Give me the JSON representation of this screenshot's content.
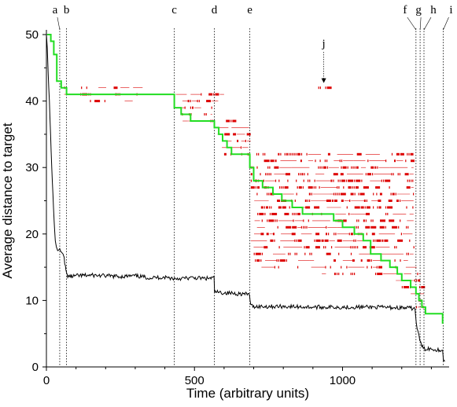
{
  "chart_data": {
    "type": "line",
    "xlabel": "Time (arbitrary units)",
    "ylabel": "Average distance to target",
    "xlim": [
      0,
      1360
    ],
    "ylim": [
      0,
      50
    ],
    "x_ticks": [
      0,
      500,
      1000
    ],
    "y_ticks": [
      0,
      10,
      20,
      30,
      40,
      50
    ],
    "grid": false,
    "colors": {
      "black_series": "#000000",
      "green_series": "#22dd22",
      "red_marks": "#dd0000",
      "markers": "#000000"
    },
    "markers": [
      {
        "label": "a",
        "x": 45
      },
      {
        "label": "b",
        "x": 68
      },
      {
        "label": "c",
        "x": 432
      },
      {
        "label": "d",
        "x": 567
      },
      {
        "label": "e",
        "x": 687
      },
      {
        "label": "f",
        "x": 1248
      },
      {
        "label": "g",
        "x": 1262
      },
      {
        "label": "h",
        "x": 1275
      },
      {
        "label": "i",
        "x": 1340
      }
    ],
    "annotations": [
      {
        "label": "j",
        "x": 942,
        "y": 42
      }
    ],
    "series": [
      {
        "style": "solid-black",
        "x": [
          0,
          3,
          6,
          10,
          14,
          18,
          22,
          26,
          30,
          34,
          38,
          42,
          45,
          48,
          52,
          56,
          60,
          64,
          68,
          72,
          80,
          100,
          150,
          200,
          250,
          300,
          350,
          400,
          432,
          450,
          500,
          540,
          566,
          568,
          580,
          620,
          660,
          686,
          690,
          700,
          800,
          900,
          1000,
          1100,
          1200,
          1245,
          1249,
          1255,
          1261,
          1265,
          1270,
          1276,
          1290,
          1300,
          1320,
          1338,
          1341,
          1345
        ],
        "y": [
          50,
          48,
          44,
          40,
          35,
          30,
          26,
          22,
          19,
          18,
          17.5,
          17.6,
          17.8,
          17.4,
          17.2,
          17.0,
          16.5,
          15.0,
          14.0,
          13.7,
          13.6,
          13.7,
          13.8,
          13.7,
          13.6,
          13.7,
          13.4,
          13.5,
          13.3,
          13.3,
          13.4,
          13.3,
          13.4,
          11.3,
          11.2,
          11.1,
          11.0,
          10.9,
          9.2,
          9.1,
          9.1,
          9.0,
          9.0,
          9.0,
          8.9,
          8.8,
          6.5,
          5.2,
          4.0,
          3.5,
          3.0,
          2.7,
          2.8,
          2.7,
          2.6,
          2.5,
          0.9,
          0.8
        ]
      },
      {
        "style": "solid-green",
        "x": [
          2,
          15,
          25,
          35,
          50,
          68,
          432,
          455,
          487,
          567,
          582,
          595,
          610,
          625,
          687,
          700,
          730,
          765,
          795,
          830,
          865,
          900,
          930,
          970,
          1000,
          1040,
          1070,
          1095,
          1130,
          1160,
          1185,
          1200,
          1230,
          1248,
          1258,
          1268,
          1280,
          1338
        ],
        "y": [
          50,
          49,
          47,
          43,
          42,
          41,
          39,
          38,
          37,
          36,
          35,
          34,
          33,
          32,
          30,
          28,
          27,
          26,
          25,
          24,
          23,
          23,
          23,
          22,
          21,
          20,
          19,
          17,
          16,
          15,
          14,
          13,
          12,
          11,
          10,
          9,
          8,
          6.5
        ]
      }
    ],
    "red_bands": [
      {
        "y": 42,
        "x0": 60,
        "x1": 400,
        "density": 0.2
      },
      {
        "y": 41,
        "x0": 60,
        "x1": 340,
        "density": 0.45
      },
      {
        "y": 40,
        "x0": 130,
        "x1": 300,
        "density": 0.12
      },
      {
        "y": 41,
        "x0": 430,
        "x1": 600,
        "density": 0.4
      },
      {
        "y": 40,
        "x0": 430,
        "x1": 580,
        "density": 0.4
      },
      {
        "y": 39,
        "x0": 430,
        "x1": 590,
        "density": 0.4
      },
      {
        "y": 38,
        "x0": 440,
        "x1": 560,
        "density": 0.35
      },
      {
        "y": 37,
        "x0": 460,
        "x1": 640,
        "density": 0.3
      },
      {
        "y": 36,
        "x0": 560,
        "x1": 690,
        "density": 0.3
      },
      {
        "y": 35,
        "x0": 560,
        "x1": 690,
        "density": 0.3
      },
      {
        "y": 34,
        "x0": 570,
        "x1": 690,
        "density": 0.3
      },
      {
        "y": 33,
        "x0": 580,
        "x1": 690,
        "density": 0.3
      },
      {
        "y": 32,
        "x0": 600,
        "x1": 1230,
        "density": 0.5
      },
      {
        "y": 31,
        "x0": 690,
        "x1": 1240,
        "density": 0.35
      },
      {
        "y": 30,
        "x0": 690,
        "x1": 1240,
        "density": 0.5
      },
      {
        "y": 29,
        "x0": 690,
        "x1": 1240,
        "density": 0.45
      },
      {
        "y": 28,
        "x0": 690,
        "x1": 1240,
        "density": 0.5
      },
      {
        "y": 27,
        "x0": 690,
        "x1": 1240,
        "density": 0.5
      },
      {
        "y": 26,
        "x0": 690,
        "x1": 1240,
        "density": 0.45
      },
      {
        "y": 25,
        "x0": 690,
        "x1": 1240,
        "density": 0.5
      },
      {
        "y": 24,
        "x0": 690,
        "x1": 1240,
        "density": 0.45
      },
      {
        "y": 23,
        "x0": 690,
        "x1": 1240,
        "density": 0.5
      },
      {
        "y": 22,
        "x0": 690,
        "x1": 1240,
        "density": 0.45
      },
      {
        "y": 21,
        "x0": 690,
        "x1": 1240,
        "density": 0.5
      },
      {
        "y": 20,
        "x0": 690,
        "x1": 1240,
        "density": 0.45
      },
      {
        "y": 19,
        "x0": 690,
        "x1": 1240,
        "density": 0.45
      },
      {
        "y": 18,
        "x0": 690,
        "x1": 1240,
        "density": 0.4
      },
      {
        "y": 17,
        "x0": 690,
        "x1": 1240,
        "density": 0.35
      },
      {
        "y": 16,
        "x0": 690,
        "x1": 1240,
        "density": 0.3
      },
      {
        "y": 15,
        "x0": 690,
        "x1": 1250,
        "density": 0.25
      },
      {
        "y": 14,
        "x0": 930,
        "x1": 1265,
        "density": 0.3
      },
      {
        "y": 13,
        "x0": 1180,
        "x1": 1270,
        "density": 0.35
      },
      {
        "y": 12,
        "x0": 1200,
        "x1": 1275,
        "density": 0.35
      },
      {
        "y": 11,
        "x0": 1230,
        "x1": 1275,
        "density": 0.4
      },
      {
        "y": 10,
        "x0": 1240,
        "x1": 1280,
        "density": 0.4
      },
      {
        "y": 9,
        "x0": 1248,
        "x1": 1285,
        "density": 0.4
      },
      {
        "y": 42,
        "x0": 918,
        "x1": 962,
        "density": 0.8
      }
    ]
  }
}
